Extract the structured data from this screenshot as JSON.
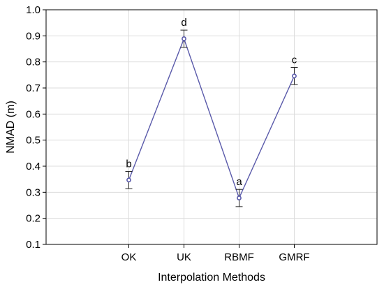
{
  "chart_data": {
    "type": "line",
    "title": "",
    "xlabel": "Interpolation Methods",
    "ylabel": "NMAD (m)",
    "categories": [
      "OK",
      "UK",
      "RBMF",
      "GMRF"
    ],
    "series": [
      {
        "name": "",
        "values": [
          0.347,
          0.889,
          0.278,
          0.746
        ],
        "error_low": [
          0.314,
          0.856,
          0.245,
          0.713
        ],
        "error_high": [
          0.38,
          0.922,
          0.311,
          0.779
        ],
        "group_labels": [
          "b",
          "d",
          "a",
          "c"
        ],
        "color": "#5a5aaa"
      }
    ],
    "ylim": [
      0.1,
      1.0
    ],
    "yticks": [
      "0.1",
      "0.2",
      "0.3",
      "0.4",
      "0.5",
      "0.6",
      "0.7",
      "0.8",
      "0.9",
      "1.0"
    ],
    "grid": true,
    "legend": "none"
  }
}
